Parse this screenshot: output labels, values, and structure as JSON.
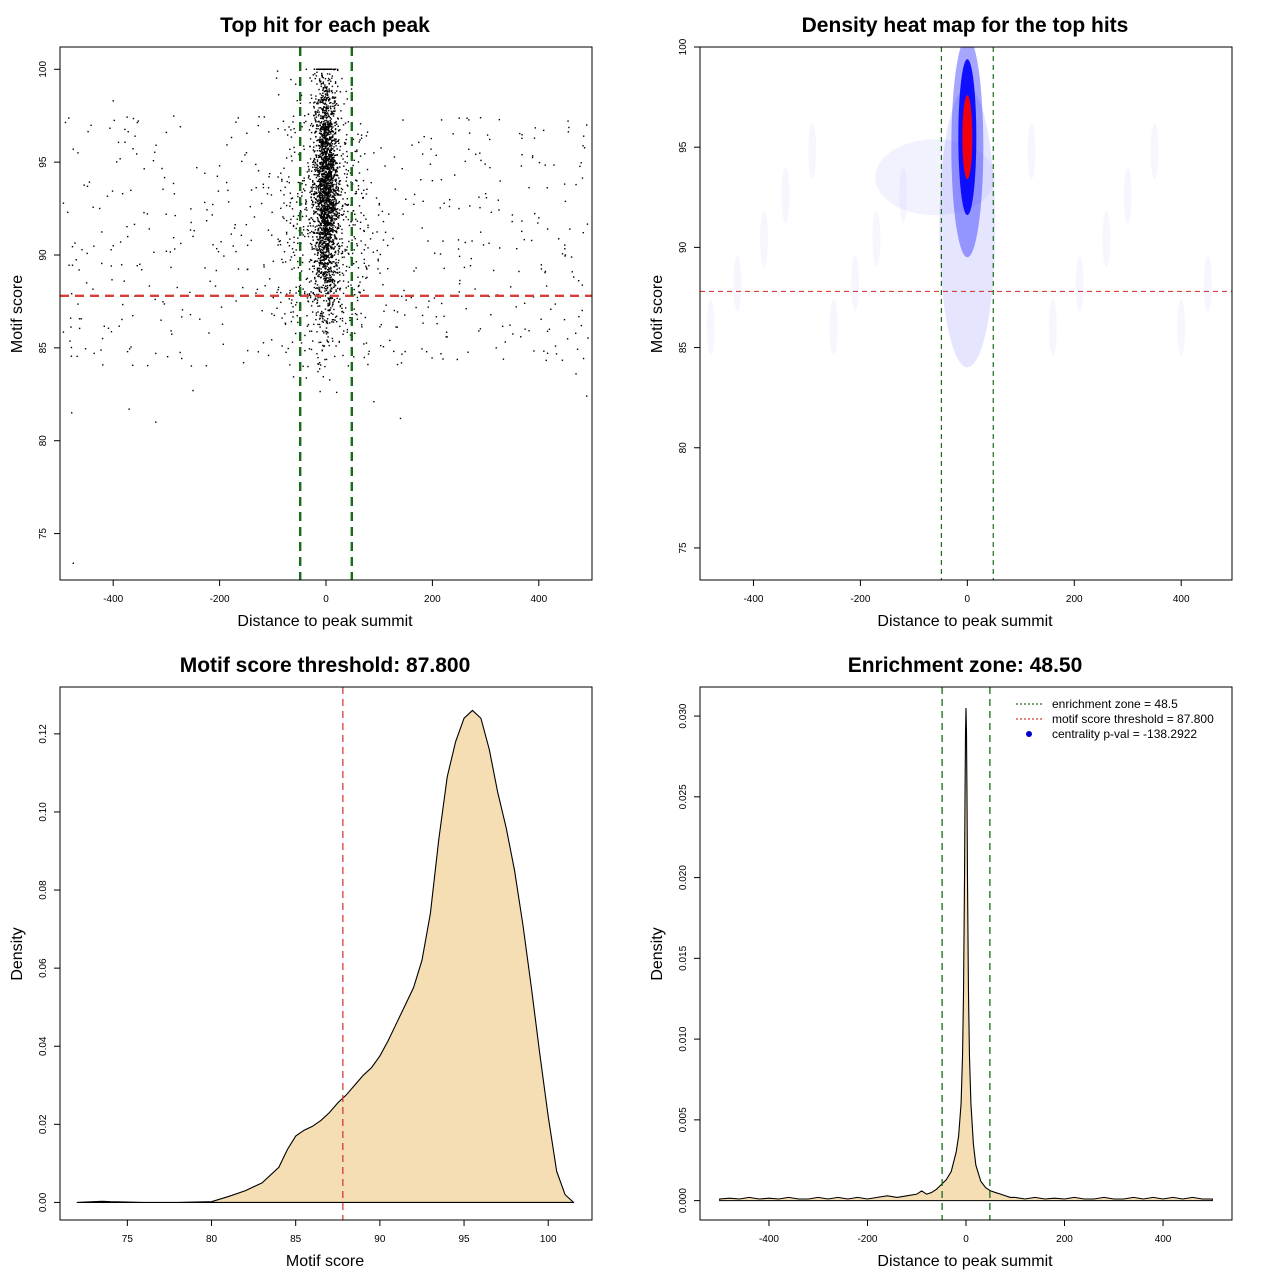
{
  "chart_data": [
    {
      "id": "scatter",
      "type": "scatter",
      "title": "Top hit for each peak",
      "xlabel": "Distance to peak summit",
      "ylabel": "Motif score",
      "xlim": [
        -500,
        500
      ],
      "ylim": [
        72.5,
        101.2
      ],
      "xticks": [
        "-400",
        "-200",
        "0",
        "200",
        "400"
      ],
      "xtick_values": [
        -400,
        -200,
        0,
        200,
        400
      ],
      "yticks": [
        "75",
        "80",
        "85",
        "90",
        "95",
        "100"
      ],
      "ytick_values": [
        75,
        80,
        85,
        90,
        95,
        100
      ],
      "hlines": [
        {
          "y": 87.8,
          "color": "#d43f3a",
          "style": "dashed"
        }
      ],
      "vlines": [
        {
          "x": -48.5,
          "color": "#1a6b1a",
          "style": "dashed"
        },
        {
          "x": 48.5,
          "color": "#1a6b1a",
          "style": "dashed"
        }
      ],
      "point_color": "#000000",
      "points_sample": [
        [
          -475,
          73.4
        ],
        [
          -478,
          81.5
        ],
        [
          -400,
          98.3
        ],
        [
          -300,
          96.6
        ],
        [
          -155,
          84.2
        ],
        [
          140,
          81.2
        ],
        [
          470,
          83.6
        ],
        [
          490,
          82.4
        ],
        [
          -370,
          81.7
        ],
        [
          -320,
          81.0
        ],
        [
          -250,
          82.7
        ],
        [
          90,
          82.1
        ],
        [
          20,
          82.6
        ],
        [
          -10,
          85.3
        ],
        [
          0,
          100.0
        ],
        [
          10,
          100.0
        ],
        [
          -5,
          100.0
        ],
        [
          5,
          99.5
        ],
        [
          -20,
          99.5
        ],
        [
          30,
          99.5
        ],
        [
          -30,
          98.2
        ],
        [
          40,
          98.4
        ],
        [
          -40,
          97.5
        ],
        [
          60,
          96.5
        ],
        [
          -60,
          96.8
        ],
        [
          -80,
          97.2
        ],
        [
          90,
          95.5
        ],
        [
          -90,
          94.2
        ],
        [
          100,
          92.7
        ],
        [
          -110,
          93.3
        ],
        [
          150,
          93.0
        ],
        [
          -140,
          93.5
        ],
        [
          200,
          94.0
        ],
        [
          -200,
          94.8
        ],
        [
          250,
          92.5
        ],
        [
          -250,
          91.0
        ],
        [
          300,
          93.3
        ],
        [
          -300,
          90.2
        ],
        [
          350,
          91.8
        ],
        [
          -350,
          89.5
        ],
        [
          400,
          92.0
        ],
        [
          -400,
          90.5
        ],
        [
          450,
          90.0
        ],
        [
          -450,
          88.5
        ],
        [
          480,
          86.2
        ],
        [
          -480,
          86.6
        ],
        [
          420,
          86.0
        ],
        [
          -420,
          85.5
        ],
        [
          320,
          85.0
        ],
        [
          -320,
          84.7
        ],
        [
          220,
          84.4
        ],
        [
          -220,
          85.8
        ],
        [
          120,
          85.4
        ],
        [
          -120,
          87.0
        ],
        [
          60,
          88.8
        ],
        [
          -60,
          89.3
        ],
        [
          30,
          90.5
        ],
        [
          -30,
          91.2
        ],
        [
          15,
          93.5
        ],
        [
          -15,
          94.5
        ],
        [
          0,
          96.0
        ],
        [
          8,
          97.0
        ],
        [
          -8,
          95.2
        ],
        [
          2,
          91.8
        ],
        [
          -2,
          89.0
        ]
      ]
    },
    {
      "id": "heatmap",
      "type": "heatmap",
      "title": "Density heat map for the top hits",
      "xlabel": "Distance to peak summit",
      "ylabel": "Motif score",
      "xlim": [
        -500,
        495
      ],
      "ylim": [
        73.4,
        100.0
      ],
      "xticks": [
        "-400",
        "-200",
        "0",
        "200",
        "400"
      ],
      "xtick_values": [
        -400,
        -200,
        0,
        200,
        400
      ],
      "yticks": [
        "75",
        "80",
        "85",
        "90",
        "95",
        "100"
      ],
      "ytick_values": [
        75,
        80,
        85,
        90,
        95,
        100
      ],
      "hlines": [
        {
          "y": 87.8,
          "color": "#d43f3a",
          "style": "dashed"
        }
      ],
      "vlines": [
        {
          "x": -48.5,
          "color": "#1a6b1a",
          "style": "dashed"
        },
        {
          "x": 48.5,
          "color": "#1a6b1a",
          "style": "dashed"
        }
      ],
      "color_scale": [
        "#ffffff",
        "#0000ff",
        "#ff0000"
      ],
      "hotspot": {
        "x": 0,
        "y": 95.5
      }
    },
    {
      "id": "score-density",
      "type": "area",
      "title": "Motif score threshold: 87.800",
      "xlabel": "Motif score",
      "ylabel": "Density",
      "xlim": [
        71.0,
        102.6
      ],
      "ylim": [
        -0.0045,
        0.132
      ],
      "xticks": [
        "75",
        "80",
        "85",
        "90",
        "95",
        "100"
      ],
      "xtick_values": [
        75,
        80,
        85,
        90,
        95,
        100
      ],
      "yticks": [
        "0.00",
        "0.02",
        "0.04",
        "0.06",
        "0.08",
        "0.10",
        "0.12"
      ],
      "ytick_values": [
        0,
        0.02,
        0.04,
        0.06,
        0.08,
        0.1,
        0.12
      ],
      "fill_color": "#f5deb3",
      "vlines": [
        {
          "x": 87.8,
          "color": "#d43f3a",
          "style": "dashed"
        }
      ],
      "x": [
        72.0,
        73.0,
        73.5,
        74.0,
        76.0,
        78.0,
        80.0,
        81.0,
        82.0,
        83.0,
        84.0,
        84.5,
        85.0,
        85.5,
        86.0,
        86.5,
        87.0,
        87.5,
        88.0,
        88.5,
        89.0,
        89.5,
        90.0,
        90.5,
        91.0,
        91.5,
        92.0,
        92.5,
        93.0,
        93.5,
        94.0,
        94.5,
        95.0,
        95.5,
        96.0,
        96.5,
        97.0,
        97.5,
        98.0,
        98.5,
        99.0,
        99.5,
        100.0,
        100.5,
        101.0,
        101.5
      ],
      "y": [
        0.0,
        0.0002,
        0.0003,
        0.0002,
        0.0,
        0.0,
        0.0002,
        0.0015,
        0.003,
        0.005,
        0.009,
        0.0135,
        0.017,
        0.0185,
        0.0195,
        0.021,
        0.023,
        0.0255,
        0.0275,
        0.03,
        0.0325,
        0.0345,
        0.0375,
        0.0415,
        0.046,
        0.0505,
        0.055,
        0.062,
        0.074,
        0.093,
        0.109,
        0.118,
        0.124,
        0.126,
        0.124,
        0.116,
        0.105,
        0.096,
        0.085,
        0.071,
        0.055,
        0.038,
        0.022,
        0.008,
        0.002,
        0.0
      ]
    },
    {
      "id": "distance-density",
      "type": "area",
      "title": "Enrichment zone: 48.50",
      "xlabel": "Distance to peak summit",
      "ylabel": "Density",
      "xlim": [
        -540,
        540
      ],
      "ylim": [
        -0.0012,
        0.0318
      ],
      "xticks": [
        "-400",
        "-200",
        "0",
        "200",
        "400"
      ],
      "xtick_values": [
        -400,
        -200,
        0,
        200,
        400
      ],
      "yticks": [
        "0.000",
        "0.005",
        "0.010",
        "0.015",
        "0.020",
        "0.025",
        "0.030"
      ],
      "ytick_values": [
        0,
        0.005,
        0.01,
        0.015,
        0.02,
        0.025,
        0.03
      ],
      "fill_color": "#f5deb3",
      "vlines": [
        {
          "x": -48.5,
          "color": "#1a6b1a",
          "style": "dashed"
        },
        {
          "x": 48.5,
          "color": "#1a6b1a",
          "style": "dashed"
        }
      ],
      "x": [
        -500,
        -480,
        -460,
        -440,
        -420,
        -400,
        -380,
        -360,
        -340,
        -320,
        -300,
        -280,
        -260,
        -240,
        -220,
        -200,
        -180,
        -160,
        -140,
        -120,
        -100,
        -90,
        -80,
        -70,
        -60,
        -50,
        -40,
        -30,
        -20,
        -15,
        -10,
        -7,
        -5,
        -3,
        -2,
        -1,
        0,
        1,
        2,
        3,
        5,
        7,
        10,
        15,
        20,
        30,
        40,
        50,
        60,
        70,
        80,
        90,
        100,
        120,
        140,
        160,
        180,
        200,
        220,
        240,
        260,
        280,
        300,
        320,
        340,
        360,
        380,
        400,
        420,
        440,
        460,
        480,
        500
      ],
      "y": [
        0.0001,
        0.00015,
        0.0001,
        0.0002,
        0.0001,
        0.00015,
        0.0001,
        0.0002,
        0.0001,
        0.0001,
        0.0002,
        0.0001,
        0.0002,
        0.0001,
        0.0002,
        0.0001,
        0.0002,
        0.0003,
        0.0002,
        0.0003,
        0.0004,
        0.0006,
        0.0004,
        0.0005,
        0.0007,
        0.001,
        0.0013,
        0.0018,
        0.003,
        0.004,
        0.006,
        0.009,
        0.013,
        0.02,
        0.025,
        0.029,
        0.0305,
        0.029,
        0.025,
        0.02,
        0.013,
        0.009,
        0.006,
        0.0035,
        0.0022,
        0.0012,
        0.0008,
        0.0006,
        0.0005,
        0.0004,
        0.0003,
        0.0002,
        0.0002,
        0.0001,
        0.0002,
        0.0001,
        0.00015,
        0.0001,
        0.0002,
        0.0001,
        0.0001,
        0.0002,
        0.0001,
        0.0001,
        0.0002,
        0.0001,
        0.0002,
        0.0001,
        0.0002,
        0.0001,
        0.0002,
        0.0001,
        0.0001
      ],
      "legend": {
        "placement": "top-right",
        "entries": [
          {
            "label": "enrichment zone = 48.5",
            "color": "#1a6b1a",
            "type": "line"
          },
          {
            "label": "motif score threshold = 87.800",
            "color": "#d43f3a",
            "type": "line"
          },
          {
            "label": "centrality p-val = -138.2922",
            "color": "#0000cc",
            "type": "point"
          }
        ]
      }
    }
  ]
}
